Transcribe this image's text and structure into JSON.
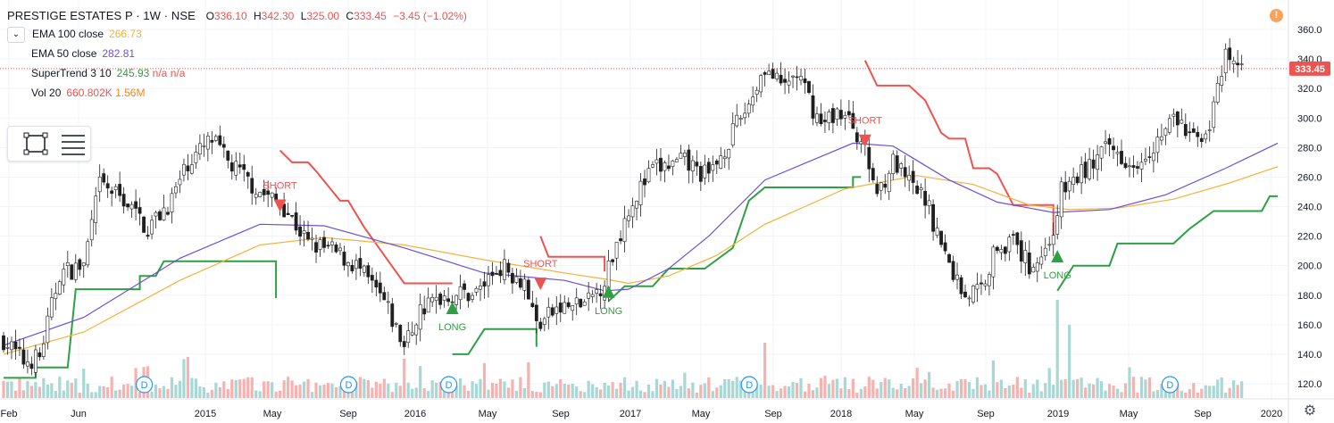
{
  "header": {
    "symbol": "PRESTIGE ESTATES P · 1W · NSE",
    "open_label": "O",
    "open": "336.10",
    "high_label": "H",
    "high": "342.30",
    "low_label": "L",
    "low": "325.00",
    "close_label": "C",
    "close": "333.45",
    "change": "−3.45 (−1.02%)"
  },
  "indicators": [
    {
      "name": "EMA 100 close",
      "value": "266.73",
      "color": "#f2b33a"
    },
    {
      "name": "EMA 50 close",
      "value": "282.81",
      "color": "#6f4ed6"
    },
    {
      "name": "SuperTrend 3 10",
      "value": "245.93",
      "extra1": "n/a",
      "extra2": "n/a",
      "color": "#2ea043",
      "extra_color": "#ef5350"
    },
    {
      "name": "Vol 20",
      "value": "660.802K",
      "extra1": "1.56M",
      "color": "#ef5350",
      "extra_color": "#f7861c"
    }
  ],
  "icons": {
    "collapse": "chevron-down-icon",
    "rect_tool": "rectangle-tool-icon",
    "list_tool": "object-tree-icon",
    "alert": "alert-icon",
    "settings": "gear-icon",
    "dividend_marker": "dividend-icon"
  },
  "alert_glyph": "!",
  "dividend_glyph": "D",
  "settings_glyph": "⚙",
  "chart_data": {
    "type": "candlestick",
    "y_axis": {
      "ticks": [
        120,
        140,
        160,
        180,
        200,
        220,
        240,
        260,
        280,
        300,
        320,
        340,
        360
      ],
      "range": [
        108,
        368
      ],
      "position": "right"
    },
    "x_axis": {
      "labels": [
        "Feb",
        "Jun",
        "2015",
        "May",
        "Sep",
        "2016",
        "May",
        "Sep",
        "2017",
        "May",
        "Sep",
        "2018",
        "May",
        "Sep",
        "2019",
        "May",
        "Sep",
        "2020"
      ]
    },
    "last_price": {
      "value": 333.45,
      "label": "333.45",
      "color": "#ef5350"
    },
    "colors": {
      "up": "#26a69a",
      "down": "#ef5350",
      "supertrend_up": "#2ea043",
      "supertrend_down": "#ef5350",
      "ema50": "#6f4ed6",
      "ema100": "#f2b33a"
    },
    "close_series_keyframes": [
      {
        "period": 0,
        "close": 150
      },
      {
        "period": 5,
        "close": 135
      },
      {
        "period": 9,
        "close": 138
      },
      {
        "period": 14,
        "close": 195
      },
      {
        "period": 20,
        "close": 200
      },
      {
        "period": 24,
        "close": 255
      },
      {
        "period": 30,
        "close": 245
      },
      {
        "period": 36,
        "close": 225
      },
      {
        "period": 42,
        "close": 245
      },
      {
        "period": 46,
        "close": 270
      },
      {
        "period": 52,
        "close": 285
      },
      {
        "period": 56,
        "close": 270
      },
      {
        "period": 64,
        "close": 250
      },
      {
        "period": 70,
        "close": 240
      },
      {
        "period": 76,
        "close": 215
      },
      {
        "period": 82,
        "close": 210
      },
      {
        "period": 88,
        "close": 200
      },
      {
        "period": 95,
        "close": 175
      },
      {
        "period": 100,
        "close": 145
      },
      {
        "period": 104,
        "close": 170
      },
      {
        "period": 110,
        "close": 180
      },
      {
        "period": 118,
        "close": 182
      },
      {
        "period": 124,
        "close": 200
      },
      {
        "period": 130,
        "close": 190
      },
      {
        "period": 133,
        "close": 160
      },
      {
        "period": 138,
        "close": 170
      },
      {
        "period": 146,
        "close": 175
      },
      {
        "period": 150,
        "close": 190
      },
      {
        "period": 156,
        "close": 240
      },
      {
        "period": 162,
        "close": 265
      },
      {
        "period": 170,
        "close": 270
      },
      {
        "period": 176,
        "close": 260
      },
      {
        "period": 182,
        "close": 290
      },
      {
        "period": 186,
        "close": 310
      },
      {
        "period": 190,
        "close": 335
      },
      {
        "period": 194,
        "close": 320
      },
      {
        "period": 198,
        "close": 330
      },
      {
        "period": 204,
        "close": 295
      },
      {
        "period": 208,
        "close": 305
      },
      {
        "period": 212,
        "close": 295
      },
      {
        "period": 214,
        "close": 285
      },
      {
        "period": 218,
        "close": 250
      },
      {
        "period": 222,
        "close": 270
      },
      {
        "period": 226,
        "close": 255
      },
      {
        "period": 230,
        "close": 245
      },
      {
        "period": 236,
        "close": 200
      },
      {
        "period": 240,
        "close": 180
      },
      {
        "period": 244,
        "close": 185
      },
      {
        "period": 248,
        "close": 215
      },
      {
        "period": 252,
        "close": 215
      },
      {
        "period": 256,
        "close": 200
      },
      {
        "period": 260,
        "close": 210
      },
      {
        "period": 262,
        "close": 225
      },
      {
        "period": 264,
        "close": 250
      },
      {
        "period": 270,
        "close": 265
      },
      {
        "period": 276,
        "close": 280
      },
      {
        "period": 282,
        "close": 270
      },
      {
        "period": 288,
        "close": 285
      },
      {
        "period": 292,
        "close": 300
      },
      {
        "period": 297,
        "close": 285
      },
      {
        "period": 301,
        "close": 295
      },
      {
        "period": 305,
        "close": 340
      },
      {
        "period": 309,
        "close": 333
      }
    ],
    "supertrend_segments": [
      {
        "direction": "up",
        "points": [
          [
            0,
            124
          ],
          [
            8,
            124
          ],
          [
            8,
            131
          ],
          [
            16,
            131
          ],
          [
            18,
            184
          ],
          [
            34,
            184
          ],
          [
            34,
            193
          ],
          [
            38,
            193
          ],
          [
            40,
            203
          ],
          [
            68,
            203
          ],
          [
            68,
            178
          ]
        ]
      },
      {
        "direction": "down",
        "points": [
          [
            69,
            278
          ],
          [
            72,
            270
          ],
          [
            76,
            270
          ],
          [
            78,
            264
          ],
          [
            84,
            244
          ],
          [
            86,
            244
          ],
          [
            90,
            226
          ],
          [
            100,
            188
          ],
          [
            112,
            188
          ]
        ]
      },
      {
        "direction": "up",
        "points": [
          [
            112,
            140
          ],
          [
            116,
            140
          ],
          [
            120,
            157
          ],
          [
            133,
            157
          ],
          [
            133,
            145
          ]
        ]
      },
      {
        "direction": "down",
        "points": [
          [
            134,
            220
          ],
          [
            136,
            206
          ],
          [
            150,
            206
          ],
          [
            150,
            196
          ]
        ]
      },
      {
        "direction": "up",
        "points": [
          [
            151,
            176
          ],
          [
            155,
            186
          ],
          [
            162,
            186
          ],
          [
            166,
            198
          ],
          [
            175,
            198
          ],
          [
            182,
            212
          ],
          [
            186,
            244
          ],
          [
            190,
            253
          ],
          [
            212,
            253
          ],
          [
            212,
            260
          ],
          [
            214,
            260
          ]
        ]
      },
      {
        "direction": "down",
        "points": [
          [
            215,
            339
          ],
          [
            218,
            322
          ],
          [
            226,
            322
          ],
          [
            230,
            312
          ],
          [
            234,
            290
          ],
          [
            236,
            286
          ],
          [
            240,
            286
          ],
          [
            242,
            266
          ],
          [
            246,
            266
          ],
          [
            248,
            262
          ],
          [
            252,
            241
          ],
          [
            262,
            241
          ],
          [
            262,
            218
          ]
        ]
      },
      {
        "direction": "up",
        "points": [
          [
            263,
            183
          ],
          [
            267,
            200
          ],
          [
            276,
            200
          ],
          [
            278,
            215
          ],
          [
            292,
            215
          ],
          [
            296,
            225
          ],
          [
            302,
            237
          ],
          [
            314,
            237
          ],
          [
            316,
            247
          ],
          [
            318,
            247
          ]
        ]
      }
    ],
    "ema_keyframes": {
      "ema50": [
        [
          0,
          146
        ],
        [
          20,
          165
        ],
        [
          44,
          205
        ],
        [
          64,
          228
        ],
        [
          80,
          227
        ],
        [
          100,
          212
        ],
        [
          120,
          195
        ],
        [
          140,
          190
        ],
        [
          150,
          183
        ],
        [
          156,
          184
        ],
        [
          166,
          198
        ],
        [
          176,
          220
        ],
        [
          190,
          258
        ],
        [
          212,
          283
        ],
        [
          222,
          281
        ],
        [
          236,
          258
        ],
        [
          248,
          243
        ],
        [
          262,
          236
        ],
        [
          276,
          238
        ],
        [
          290,
          248
        ],
        [
          305,
          266
        ],
        [
          318,
          283
        ]
      ],
      "ema100": [
        [
          0,
          140
        ],
        [
          20,
          155
        ],
        [
          44,
          190
        ],
        [
          64,
          214
        ],
        [
          80,
          219
        ],
        [
          100,
          214
        ],
        [
          120,
          204
        ],
        [
          140,
          195
        ],
        [
          150,
          191
        ],
        [
          156,
          188
        ],
        [
          166,
          193
        ],
        [
          178,
          207
        ],
        [
          190,
          228
        ],
        [
          210,
          252
        ],
        [
          228,
          261
        ],
        [
          242,
          255
        ],
        [
          256,
          241
        ],
        [
          266,
          238
        ],
        [
          278,
          239
        ],
        [
          292,
          245
        ],
        [
          306,
          256
        ],
        [
          318,
          267
        ]
      ]
    },
    "signals": [
      {
        "type": "short",
        "label": "SHORT",
        "period": 69,
        "price": 240
      },
      {
        "type": "long",
        "label": "LONG",
        "period": 112,
        "price": 172
      },
      {
        "type": "short",
        "label": "SHORT",
        "period": 134,
        "price": 187
      },
      {
        "type": "long",
        "label": "LONG",
        "period": 151,
        "price": 183
      },
      {
        "type": "short",
        "label": "SHORT",
        "period": 215,
        "price": 284
      },
      {
        "type": "long",
        "label": "LONG",
        "period": 263,
        "price": 207
      }
    ],
    "dividend_periods": [
      32,
      83,
      108,
      183,
      288
    ],
    "volume_axis": {
      "max_volume_units": 100
    }
  }
}
